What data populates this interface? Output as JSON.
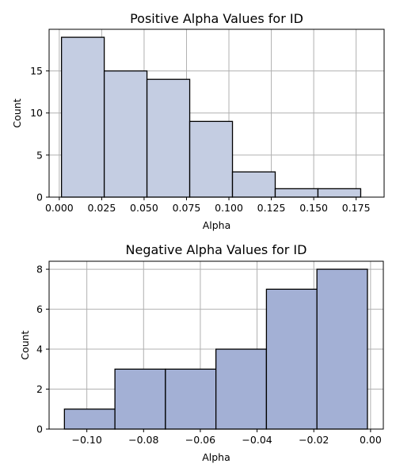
{
  "colors": {
    "positive_bar": "#c4cde2",
    "negative_bar": "#a3b0d5",
    "grid": "#b0b0b0",
    "edge": "#000000"
  },
  "chart_data": [
    {
      "type": "bar",
      "title": "Positive Alpha Values for ID",
      "xlabel": "Alpha",
      "ylabel": "Count",
      "grid": true,
      "xlim": [
        -0.006,
        0.1915
      ],
      "ylim": [
        0,
        19.95
      ],
      "xticks": [
        0.0,
        0.025,
        0.05,
        0.075,
        0.1,
        0.125,
        0.15,
        0.175
      ],
      "xtick_labels": [
        "0.000",
        "0.025",
        "0.050",
        "0.075",
        "0.100",
        "0.125",
        "0.150",
        "0.175"
      ],
      "yticks": [
        0,
        5,
        10,
        15
      ],
      "ytick_labels": [
        "0",
        "5",
        "10",
        "15"
      ],
      "bins": [
        {
          "start": 0.0013,
          "end": 0.0265,
          "count": 19
        },
        {
          "start": 0.0265,
          "end": 0.0517,
          "count": 15
        },
        {
          "start": 0.0517,
          "end": 0.0769,
          "count": 14
        },
        {
          "start": 0.0769,
          "end": 0.1021,
          "count": 9
        },
        {
          "start": 0.1021,
          "end": 0.1273,
          "count": 3
        },
        {
          "start": 0.1273,
          "end": 0.1525,
          "count": 1
        },
        {
          "start": 0.1525,
          "end": 0.1777,
          "count": 1
        }
      ]
    },
    {
      "type": "bar",
      "title": "Negative Alpha Values for ID",
      "xlabel": "Alpha",
      "ylabel": "Count",
      "grid": true,
      "xlim": [
        -0.1133,
        0.0045
      ],
      "ylim": [
        0,
        8.4
      ],
      "xticks": [
        -0.1,
        -0.08,
        -0.06,
        -0.04,
        -0.02,
        0.0
      ],
      "xtick_labels": [
        "−0.10",
        "−0.08",
        "−0.06",
        "−0.04",
        "−0.02",
        "0.00"
      ],
      "yticks": [
        0,
        2,
        4,
        6,
        8
      ],
      "ytick_labels": [
        "0",
        "2",
        "4",
        "6",
        "8"
      ],
      "bins": [
        {
          "start": -0.1079,
          "end": -0.0901,
          "count": 1
        },
        {
          "start": -0.0901,
          "end": -0.0723,
          "count": 3
        },
        {
          "start": -0.0723,
          "end": -0.0545,
          "count": 3
        },
        {
          "start": -0.0545,
          "end": -0.0367,
          "count": 4
        },
        {
          "start": -0.0367,
          "end": -0.0189,
          "count": 7
        },
        {
          "start": -0.0189,
          "end": -0.0011,
          "count": 8
        }
      ]
    }
  ]
}
